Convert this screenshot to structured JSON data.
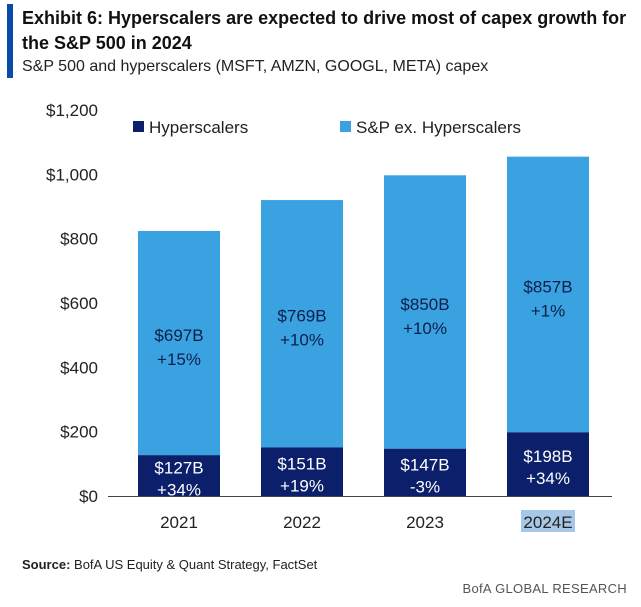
{
  "header": {
    "title": "Exhibit 6: Hyperscalers are expected to drive most of capex growth for the S&P 500 in 2024",
    "subtitle": "S&P 500 and hyperscalers (MSFT, AMZN, GOOGL, META) capex"
  },
  "source": {
    "label": "Source:",
    "text": "BofA US Equity & Quant Strategy, FactSet"
  },
  "footer": {
    "brand": "BofA GLOBAL RESEARCH"
  },
  "colors": {
    "hyperscalers": "#0c1f6b",
    "sp_ex": "#3aa2e0",
    "accent": "#0a4ba8",
    "highlight": "#a6c8e6"
  },
  "chart_data": {
    "type": "bar",
    "stacked": true,
    "categories": [
      "2021",
      "2022",
      "2023",
      "2024E"
    ],
    "highlighted_category": "2024E",
    "series": [
      {
        "name": "Hyperscalers",
        "values": [
          127,
          151,
          147,
          198
        ],
        "labels": [
          "$127B",
          "$151B",
          "$147B",
          "$198B"
        ],
        "growth": [
          "+34%",
          "+19%",
          "-3%",
          "+34%"
        ]
      },
      {
        "name": "S&P ex. Hyperscalers",
        "values": [
          697,
          769,
          850,
          857
        ],
        "labels": [
          "$697B",
          "$769B",
          "$850B",
          "$857B"
        ],
        "growth": [
          "+15%",
          "+10%",
          "+10%",
          "+1%"
        ]
      }
    ],
    "y_ticks": [
      0,
      200,
      400,
      600,
      800,
      1000,
      1200
    ],
    "y_tick_labels": [
      "$0",
      "$200",
      "$400",
      "$600",
      "$800",
      "$1,000",
      "$1,200"
    ],
    "ylim": [
      0,
      1200
    ],
    "legend_position": "top",
    "grid": false
  }
}
